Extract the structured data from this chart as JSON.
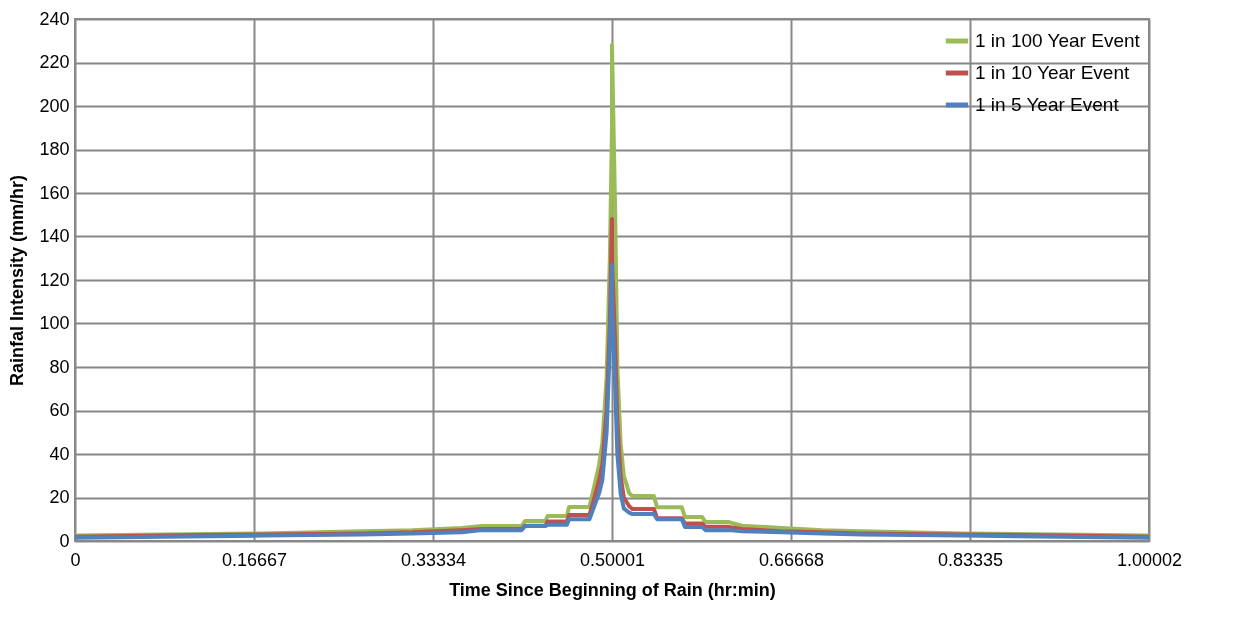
{
  "chart_data": {
    "type": "line",
    "xlabel": "Time Since Beginning of Rain (hr:min)",
    "ylabel": "Rainfal Intensity (mm/hr)",
    "x": [
      0,
      0.081,
      0.174,
      0.267,
      0.314,
      0.36,
      0.379,
      0.416,
      0.419,
      0.438,
      0.44,
      0.458,
      0.46,
      0.479,
      0.482,
      0.488,
      0.491,
      0.495,
      0.498,
      0.5,
      0.50001,
      0.503,
      0.505,
      0.508,
      0.511,
      0.516,
      0.519,
      0.539,
      0.542,
      0.565,
      0.568,
      0.584,
      0.587,
      0.609,
      0.621,
      0.658,
      0.696,
      0.733,
      0.826,
      0.919,
      1.00002
    ],
    "series": [
      {
        "name": "1 in 100 Year Event",
        "color": "#9bbb59",
        "values": [
          2.5,
          3,
          3.5,
          4.5,
          5,
          6,
          6.9,
          6.9,
          9.2,
          9.2,
          11.5,
          11.5,
          15.6,
          15.6,
          22,
          35,
          45,
          75,
          130,
          190,
          228,
          150,
          80,
          45,
          30,
          22,
          20.7,
          20.7,
          15.5,
          15.5,
          11,
          11,
          8.7,
          8.7,
          7,
          6,
          5,
          4.5,
          3.5,
          3,
          2.5
        ]
      },
      {
        "name": "1 in 10 Year Event",
        "color": "#c0504d",
        "values": [
          2,
          2.5,
          3,
          3.5,
          4,
          5,
          5.5,
          5.5,
          7,
          7,
          9,
          9,
          12,
          12,
          17,
          28,
          35,
          60,
          100,
          148,
          130,
          90,
          55,
          30,
          20,
          16,
          14.7,
          14.7,
          10.5,
          10.5,
          8,
          8,
          6.5,
          6.5,
          5.5,
          4.5,
          4,
          3.5,
          3,
          2.5,
          2
        ]
      },
      {
        "name": "1 in 5 Year Event",
        "color": "#4f81bd",
        "values": [
          1.5,
          2,
          2.5,
          3,
          3.5,
          4,
          5,
          5,
          6.9,
          6.9,
          7.5,
          7.5,
          10,
          10,
          14,
          22,
          28,
          50,
          90,
          127,
          110,
          70,
          40,
          22,
          15,
          13,
          12.4,
          12.4,
          10,
          10,
          6.4,
          6.4,
          5,
          5,
          4.5,
          4,
          3.5,
          3,
          2.5,
          2,
          1.5
        ]
      }
    ],
    "xlim": [
      0,
      1.00002
    ],
    "xticks": [
      0,
      0.16667,
      0.33334,
      0.50001,
      0.66668,
      0.83335,
      1.00002
    ],
    "ylim": [
      0,
      240
    ],
    "yticks": [
      0,
      20,
      40,
      60,
      80,
      100,
      120,
      140,
      160,
      180,
      200,
      220,
      240
    ],
    "grid": true,
    "legend": "top right"
  }
}
